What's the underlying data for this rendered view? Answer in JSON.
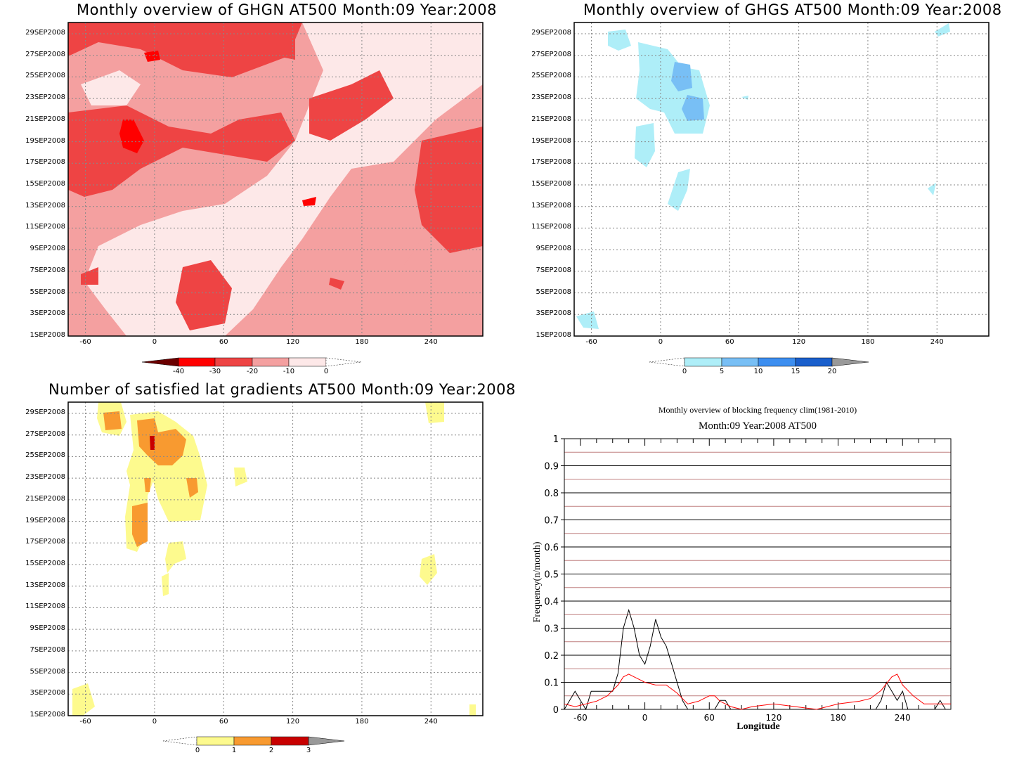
{
  "panels": [
    {
      "title": "Monthly overview of GHGN AT500 Month:09 Year:2008",
      "type": "hovmoller",
      "date_labels": [
        "29SEP2008",
        "27SEP2008",
        "25SEP2008",
        "23SEP2008",
        "21SEP2008",
        "19SEP2008",
        "17SEP2008",
        "15SEP2008",
        "13SEP2008",
        "11SEP2008",
        "9SEP2008",
        "7SEP2008",
        "5SEP2008",
        "3SEP2008",
        "1SEP2008"
      ],
      "lon_labels": [
        "-60",
        "0",
        "60",
        "120",
        "180",
        "240"
      ],
      "colorbar": {
        "labels": [
          "-40",
          "-30",
          "-20",
          "-10",
          "0"
        ],
        "colors": [
          "#6b0000",
          "#ff0000",
          "#ee4444",
          "#f4a0a0",
          "#fde8e8"
        ]
      }
    },
    {
      "title": "Monthly overview of GHGS AT500 Month:09 Year:2008",
      "type": "hovmoller",
      "date_labels": [
        "29SEP2008",
        "27SEP2008",
        "25SEP2008",
        "23SEP2008",
        "21SEP2008",
        "19SEP2008",
        "17SEP2008",
        "15SEP2008",
        "13SEP2008",
        "11SEP2008",
        "9SEP2008",
        "7SEP2008",
        "5SEP2008",
        "3SEP2008",
        "1SEP2008"
      ],
      "lon_labels": [
        "-60",
        "0",
        "60",
        "120",
        "180",
        "240"
      ],
      "colorbar": {
        "labels": [
          "0",
          "5",
          "10",
          "15",
          "20"
        ],
        "colors": [
          "#aeeef8",
          "#78bff5",
          "#3c8ef0",
          "#1a5fcc",
          "#999999"
        ]
      }
    },
    {
      "title": "Number of satisfied lat gradients AT500 Month:09 Year:2008",
      "type": "hovmoller",
      "date_labels": [
        "29SEP2008",
        "27SEP2008",
        "25SEP2008",
        "23SEP2008",
        "21SEP2008",
        "19SEP2008",
        "17SEP2008",
        "15SEP2008",
        "13SEP2008",
        "11SEP2008",
        "9SEP2008",
        "7SEP2008",
        "5SEP2008",
        "3SEP2008",
        "1SEP2008"
      ],
      "lon_labels": [
        "-60",
        "0",
        "60",
        "120",
        "180",
        "240"
      ],
      "colorbar": {
        "labels": [
          "0",
          "1",
          "2",
          "3"
        ],
        "colors": [
          "#fdfa8e",
          "#f89a30",
          "#c80000",
          "#999999"
        ]
      }
    }
  ],
  "line_chart": {
    "title": "Monthly overview of blocking frequency clim(1981-2010)",
    "subtitle": "Month:09 Year:2008  AT500",
    "xlabel": "Longitude",
    "ylabel": "Frequency(n/month)",
    "y_tick_labels": [
      "0",
      "0.1",
      "0.2",
      "0.3",
      "0.4",
      "0.5",
      "0.6",
      "0.7",
      "0.8",
      "0.9",
      "1"
    ],
    "x_tick_labels": [
      "-60",
      "0",
      "60",
      "120",
      "180",
      "240"
    ],
    "colors": {
      "observed": "#000000",
      "climatology": "#ff0000",
      "gridline": "#000000",
      "minor_gridline": "#c08080"
    }
  },
  "chart_data": [
    {
      "type": "heatmap",
      "title": "Monthly overview of GHGN AT500 Month:09 Year:2008",
      "x_range": [
        -75,
        285
      ],
      "y_range": [
        "1SEP2008",
        "30SEP2008"
      ],
      "levels": [
        -40,
        -30,
        -20,
        -10,
        0
      ]
    },
    {
      "type": "heatmap",
      "title": "Monthly overview of GHGS AT500 Month:09 Year:2008",
      "x_range": [
        -75,
        285
      ],
      "y_range": [
        "1SEP2008",
        "30SEP2008"
      ],
      "levels": [
        0,
        5,
        10,
        15,
        20
      ]
    },
    {
      "type": "heatmap",
      "title": "Number of satisfied lat gradients AT500 Month:09 Year:2008",
      "x_range": [
        -75,
        285
      ],
      "y_range": [
        "1SEP2008",
        "30SEP2008"
      ],
      "levels": [
        0,
        1,
        2,
        3
      ]
    },
    {
      "type": "line",
      "title": "Monthly overview of blocking frequency clim(1981-2010)",
      "xlabel": "Longitude",
      "ylabel": "Frequency(n/month)",
      "xlim": [
        -75,
        285
      ],
      "ylim": [
        0,
        1
      ],
      "series": [
        {
          "x": [
            -75,
            -70,
            -65,
            -60,
            -55,
            -50,
            -45,
            -40,
            -35,
            -30,
            -25,
            -20,
            -15,
            -10,
            -5,
            0,
            5,
            10,
            15,
            20,
            25,
            30,
            35,
            40,
            45,
            50,
            55,
            60,
            65,
            70,
            75,
            80,
            85,
            90,
            100,
            120,
            150,
            180,
            200,
            210,
            215,
            220,
            225,
            230,
            235,
            240,
            245,
            250,
            255,
            260,
            265,
            270,
            275,
            280,
            285
          ],
          "y": [
            0,
            0.033,
            0.067,
            0.033,
            0,
            0.067,
            0.067,
            0.067,
            0.067,
            0.067,
            0.133,
            0.3,
            0.367,
            0.3,
            0.2,
            0.167,
            0.233,
            0.333,
            0.267,
            0.233,
            0.167,
            0.1,
            0.033,
            0,
            0,
            0,
            0,
            0,
            0,
            0.033,
            0.033,
            0,
            0,
            0,
            0,
            0,
            0,
            0,
            0,
            0,
            0,
            0.033,
            0.1,
            0.067,
            0.033,
            0.067,
            0,
            0,
            0,
            0,
            0,
            0,
            0.033,
            0,
            0
          ]
        },
        {
          "x": [
            -75,
            -65,
            -55,
            -45,
            -35,
            -25,
            -20,
            -15,
            -10,
            -5,
            0,
            10,
            20,
            30,
            40,
            50,
            60,
            65,
            70,
            80,
            90,
            100,
            120,
            140,
            160,
            180,
            200,
            210,
            220,
            230,
            235,
            240,
            250,
            260,
            270,
            285
          ],
          "y": [
            0.02,
            0.01,
            0.02,
            0.03,
            0.05,
            0.09,
            0.12,
            0.13,
            0.12,
            0.11,
            0.1,
            0.09,
            0.09,
            0.06,
            0.02,
            0.03,
            0.05,
            0.05,
            0.03,
            0.01,
            0.0,
            0.01,
            0.02,
            0.01,
            0.0,
            0.02,
            0.03,
            0.04,
            0.07,
            0.12,
            0.13,
            0.09,
            0.05,
            0.02,
            0.02,
            0.02
          ]
        }
      ]
    }
  ]
}
